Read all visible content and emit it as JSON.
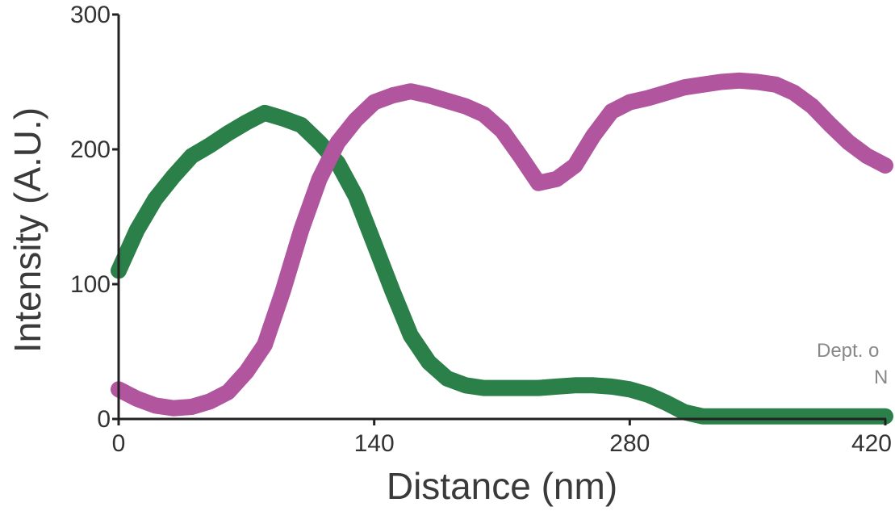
{
  "chart_data": {
    "type": "line",
    "xlabel": "Distance (nm)",
    "ylabel": "Intensity (A.U.)",
    "xlim": [
      0,
      420
    ],
    "ylim": [
      0,
      300
    ],
    "x_ticks": [
      "0",
      "140",
      "280",
      "420"
    ],
    "y_ticks": [
      "0",
      "100",
      "200",
      "300"
    ],
    "grid": false,
    "series": [
      {
        "color": "#2a8048",
        "x": [
          0,
          10,
          20,
          30,
          40,
          50,
          60,
          70,
          80,
          90,
          100,
          110,
          120,
          130,
          140,
          150,
          160,
          170,
          180,
          190,
          200,
          210,
          220,
          230,
          240,
          250,
          260,
          270,
          280,
          290,
          300,
          310,
          320,
          340,
          360,
          380,
          400,
          420
        ],
        "y": [
          110,
          140,
          163,
          180,
          195,
          203,
          212,
          220,
          227,
          223,
          218,
          205,
          190,
          165,
          130,
          95,
          62,
          42,
          30,
          25,
          23,
          23,
          23,
          23,
          24,
          25,
          25,
          24,
          22,
          18,
          12,
          5,
          2,
          2,
          2,
          2,
          2,
          2
        ]
      },
      {
        "color": "#b0559e",
        "x": [
          0,
          10,
          20,
          30,
          40,
          50,
          60,
          70,
          80,
          90,
          100,
          110,
          120,
          130,
          140,
          150,
          160,
          170,
          180,
          190,
          200,
          210,
          220,
          230,
          240,
          250,
          260,
          270,
          280,
          290,
          300,
          310,
          320,
          330,
          340,
          350,
          360,
          370,
          380,
          390,
          400,
          410,
          420
        ],
        "y": [
          22,
          15,
          10,
          8,
          9,
          13,
          20,
          35,
          55,
          95,
          140,
          178,
          205,
          222,
          235,
          240,
          243,
          240,
          236,
          232,
          226,
          214,
          195,
          175,
          178,
          188,
          210,
          228,
          235,
          238,
          242,
          246,
          248,
          250,
          251,
          250,
          248,
          242,
          232,
          218,
          205,
          195,
          188
        ]
      }
    ]
  },
  "watermark": {
    "line1": "Dept. o",
    "line2": "N"
  }
}
